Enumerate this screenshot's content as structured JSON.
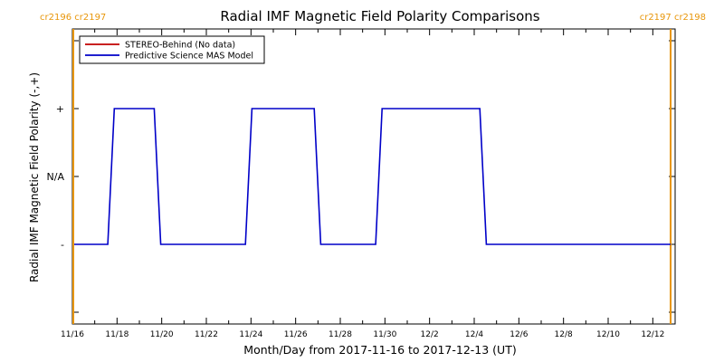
{
  "chart_data": {
    "type": "line",
    "title": "Radial IMF Magnetic Field Polarity Comparisons",
    "xlabel": "Month/Day from 2017-11-16 to 2017-12-13 (UT)",
    "ylabel": "Radial IMF Magnetic Field Polarity (-,+)",
    "x_range": [
      "2017-11-16",
      "2017-12-13"
    ],
    "x_tick_labels": [
      "11/16",
      "11/18",
      "11/20",
      "11/22",
      "11/24",
      "11/26",
      "11/28",
      "11/30",
      "12/2",
      "12/4",
      "12/6",
      "12/8",
      "12/10",
      "12/12"
    ],
    "y_tick_labels": [
      "+",
      "N/A",
      "-"
    ],
    "legend_position": "top-left",
    "colors": {
      "stereo": "#c00000",
      "mas": "#0000c8",
      "carrington": "#e8960a"
    },
    "series": [
      {
        "name": "STEREO-Behind (No data)",
        "points": []
      },
      {
        "name": "Predictive Science MAS Model",
        "points": [
          [
            "2017-11-16 00:00",
            "-"
          ],
          [
            "2017-11-17 14:00",
            "-"
          ],
          [
            "2017-11-17 21:00",
            "+"
          ],
          [
            "2017-11-19 16:00",
            "+"
          ],
          [
            "2017-11-19 23:00",
            "-"
          ],
          [
            "2017-11-23 18:00",
            "-"
          ],
          [
            "2017-11-24 01:00",
            "+"
          ],
          [
            "2017-11-26 20:00",
            "+"
          ],
          [
            "2017-11-27 03:00",
            "-"
          ],
          [
            "2017-11-29 14:00",
            "-"
          ],
          [
            "2017-11-29 21:00",
            "+"
          ],
          [
            "2017-12-04 06:00",
            "+"
          ],
          [
            "2017-12-04 13:00",
            "-"
          ],
          [
            "2017-12-13 00:00",
            "-"
          ]
        ]
      }
    ],
    "carrington_markers": [
      {
        "date": "2017-11-16 00:00",
        "label": "cr2196 cr2197",
        "label_side": "left"
      },
      {
        "date": "2017-12-13 00:00",
        "label": "cr2197 cr2198",
        "label_side": "right"
      }
    ]
  }
}
